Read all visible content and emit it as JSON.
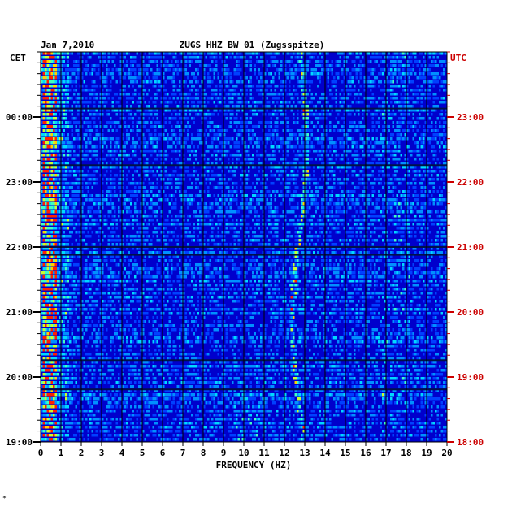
{
  "chart_data": {
    "type": "heatmap",
    "date": "Jan 7,2010",
    "title": "ZUGS HHZ BW 01 (Zugsspitze)",
    "xlabel": "FREQUENCY (HZ)",
    "xlim": [
      0,
      20
    ],
    "x_ticks": [
      "0",
      "1",
      "2",
      "3",
      "4",
      "5",
      "6",
      "7",
      "8",
      "9",
      "10",
      "11",
      "12",
      "13",
      "14",
      "15",
      "16",
      "17",
      "18",
      "19",
      "20"
    ],
    "left_axis_label": "CET",
    "right_axis_label": "UTC",
    "left_ticks": [
      "00:00",
      "23:00",
      "22:00",
      "21:00",
      "20:00",
      "19:00"
    ],
    "right_ticks": [
      "23:00",
      "22:00",
      "21:00",
      "20:00",
      "19:00",
      "18:00"
    ],
    "colors": {
      "background": "#0000cc",
      "low": "#0000ff",
      "mid": "#00ccff",
      "high": "#ffff00",
      "peak": "#ff0000",
      "right_axis": "#cc0000",
      "left_axis": "#000000"
    },
    "dominant_bands_hz": [
      {
        "name": "low-frequency",
        "from": 0.1,
        "to": 0.8
      },
      {
        "name": "drifting line",
        "from": 12.5,
        "to": 13.0
      }
    ],
    "grid": true,
    "marker": "*"
  }
}
